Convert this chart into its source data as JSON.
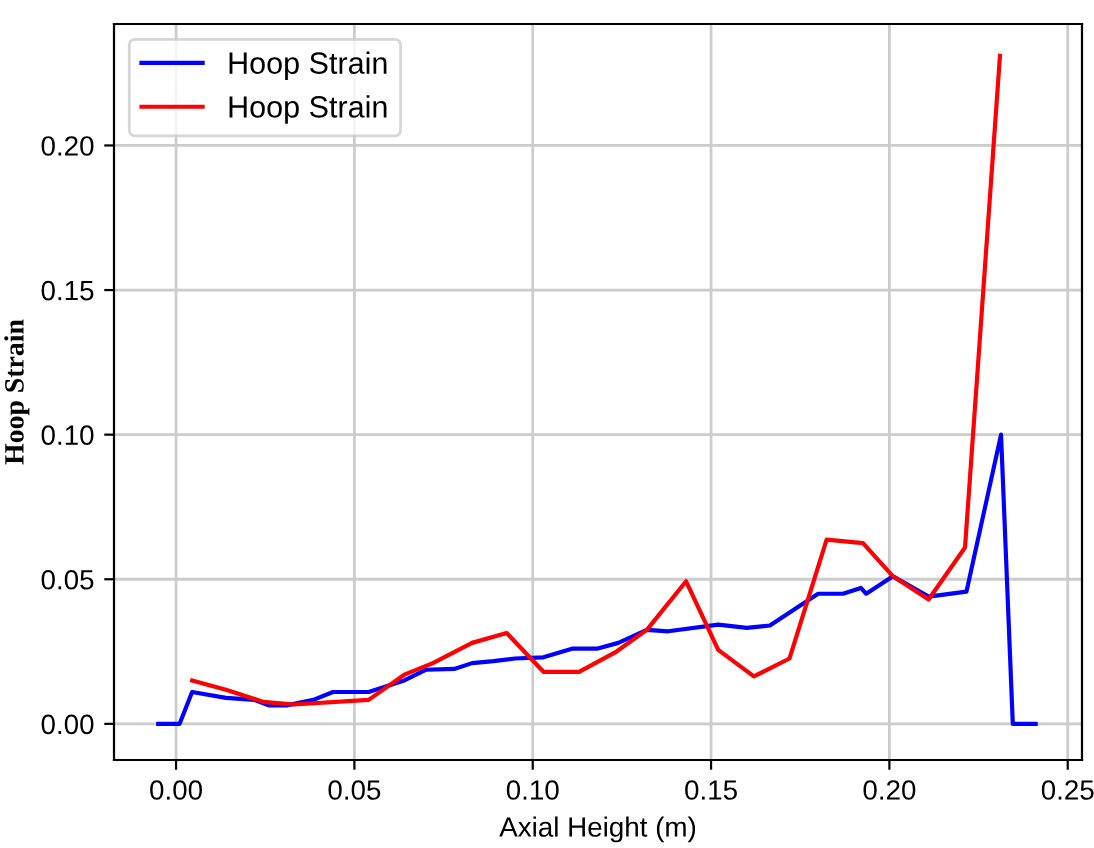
{
  "chart_data": {
    "type": "line",
    "xlabel": "Axial Height (m)",
    "ylabel": "Hoop Strain",
    "xlim": [
      -0.0174,
      0.254
    ],
    "ylim": [
      -0.0125,
      0.242
    ],
    "xticks": [
      {
        "value": 0,
        "label": "0.00"
      },
      0.05,
      {
        "value": 0.1,
        "label": "0.10"
      },
      0.15,
      {
        "value": 0.2,
        "label": "0.20"
      },
      0.25
    ],
    "yticks": [
      {
        "value": 0,
        "label": "0.00"
      },
      0.05,
      {
        "value": 0.1,
        "label": "0.10"
      },
      0.15,
      {
        "value": 0.2,
        "label": "0.20"
      }
    ],
    "grid": true,
    "legend": "top left",
    "marker": "none",
    "line_style": "solid",
    "series": [
      {
        "name": "Hoop Strain",
        "color": "#0000ff",
        "x": [
          -0.005,
          0.001,
          0.0045,
          0.014,
          0.022,
          0.026,
          0.031,
          0.0385,
          0.044,
          0.054,
          0.064,
          0.07,
          0.078,
          0.083,
          0.089,
          0.095,
          0.103,
          0.111,
          0.118,
          0.124,
          0.132,
          0.138,
          0.152,
          0.16,
          0.1665,
          0.18,
          0.187,
          0.192,
          0.1935,
          0.201,
          0.211,
          0.2216,
          0.2313,
          0.2346,
          0.241
        ],
        "values": [
          0,
          0,
          0.011,
          0.009,
          0.0083,
          0.0064,
          0.0064,
          0.0083,
          0.011,
          0.011,
          0.015,
          0.0187,
          0.019,
          0.021,
          0.0217,
          0.0226,
          0.023,
          0.026,
          0.026,
          0.028,
          0.0325,
          0.032,
          0.0343,
          0.0332,
          0.034,
          0.045,
          0.045,
          0.047,
          0.045,
          0.051,
          0.044,
          0.0457,
          0.1,
          0,
          0
        ]
      },
      {
        "name": "Hoop Strain",
        "color": "#ff0000",
        "x": [
          0.0045,
          0.014,
          0.0245,
          0.033,
          0.054,
          0.064,
          0.072,
          0.083,
          0.0927,
          0.103,
          0.113,
          0.1235,
          0.132,
          0.143,
          0.152,
          0.162,
          0.172,
          0.1824,
          0.1926,
          0.201,
          0.211,
          0.2212,
          0.231
        ],
        "values": [
          0.015,
          0.0118,
          0.0076,
          0.0067,
          0.0083,
          0.017,
          0.021,
          0.028,
          0.0314,
          0.018,
          0.018,
          0.025,
          0.0325,
          0.0493,
          0.0256,
          0.0164,
          0.0226,
          0.0637,
          0.0625,
          0.051,
          0.043,
          0.061,
          0.231
        ]
      }
    ]
  }
}
